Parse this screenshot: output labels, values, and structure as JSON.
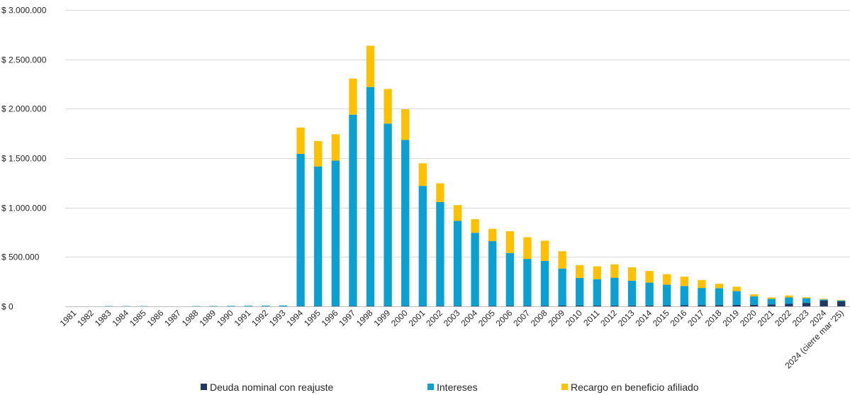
{
  "chart_data": {
    "type": "bar",
    "stacked": true,
    "ylim": [
      0,
      3000000
    ],
    "yticks": [
      0,
      500000,
      1000000,
      1500000,
      2000000,
      2500000,
      3000000
    ],
    "ytick_labels": [
      "$ 0",
      "$ 500.000",
      "$ 1.000.000",
      "$ 1.500.000",
      "$ 2.000.000",
      "$ 2.500.000",
      "$ 3.000.000"
    ],
    "grid": "horizontal",
    "legend_position": "bottom",
    "categories": [
      "1981",
      "1982",
      "1983",
      "1984",
      "1985",
      "1986",
      "1987",
      "1988",
      "1989",
      "1990",
      "1991",
      "1992",
      "1993",
      "1994",
      "1995",
      "1996",
      "1997",
      "1998",
      "1999",
      "2000",
      "2001",
      "2002",
      "2003",
      "2004",
      "2005",
      "2006",
      "2007",
      "2008",
      "2009",
      "2010",
      "2011",
      "2012",
      "2013",
      "2014",
      "2015",
      "2016",
      "2017",
      "2018",
      "2019",
      "2020",
      "2021",
      "2022",
      "2023",
      "2024",
      "2024 (cierre mar '25)"
    ],
    "series": [
      {
        "name": "Deuda nominal con reajuste",
        "color": "#1f3864",
        "values": [
          0,
          0,
          0,
          0,
          0,
          0,
          0,
          0,
          0,
          0,
          0,
          0,
          0,
          3000,
          3000,
          3000,
          4000,
          4000,
          4000,
          4000,
          5000,
          5000,
          5000,
          5000,
          5000,
          6000,
          6000,
          6000,
          7000,
          7000,
          7000,
          8000,
          8000,
          9000,
          10000,
          11000,
          12000,
          13000,
          15000,
          15000,
          20000,
          25000,
          35000,
          60000,
          50000
        ]
      },
      {
        "name": "Intereses",
        "color": "#0aa0d2",
        "values": [
          0,
          0,
          3000,
          3000,
          3000,
          0,
          0,
          3000,
          4000,
          5000,
          6000,
          7000,
          9000,
          1540000,
          1413000,
          1472000,
          1936000,
          2216000,
          1846000,
          1681000,
          1214000,
          1050000,
          860000,
          740000,
          655000,
          534000,
          474000,
          454000,
          376000,
          281000,
          268000,
          282000,
          252000,
          231000,
          210000,
          195000,
          174000,
          171000,
          139000,
          87000,
          55000,
          65000,
          47000,
          10000,
          10000
        ]
      },
      {
        "name": "Recargo en beneficio afiliado",
        "color": "#ffc000",
        "values": [
          0,
          0,
          0,
          0,
          0,
          0,
          0,
          0,
          0,
          0,
          0,
          0,
          0,
          267000,
          257000,
          267000,
          365000,
          418000,
          350000,
          310000,
          229000,
          190000,
          160000,
          137000,
          125000,
          220000,
          220000,
          205000,
          175000,
          130000,
          130000,
          135000,
          135000,
          118000,
          105000,
          95000,
          80000,
          45000,
          45000,
          20000,
          15000,
          20000,
          10000,
          5000,
          5000
        ]
      }
    ]
  }
}
